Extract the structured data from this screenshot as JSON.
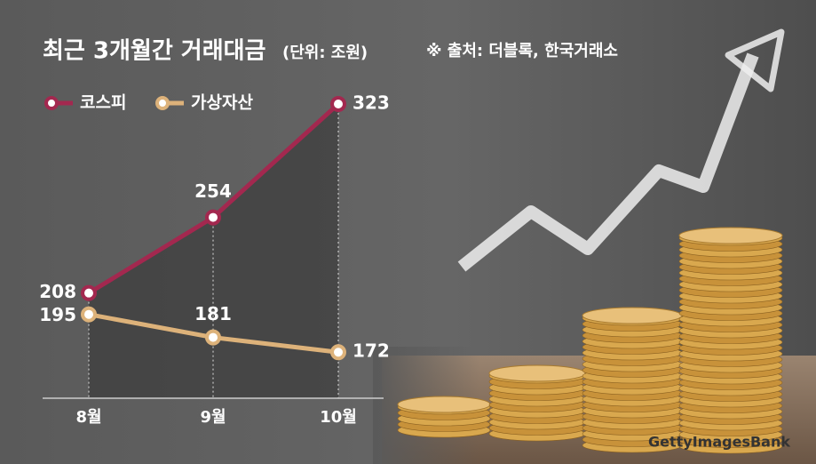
{
  "chart_data": {
    "type": "line",
    "title": "최근 3개월간 거래대금",
    "subtitle": "(단위: 조원)",
    "source": "※ 출처: 더블록, 한국거래소",
    "credit": "GettyImagesBank",
    "categories": [
      "8월",
      "9월",
      "10월"
    ],
    "series": [
      {
        "name": "코스피",
        "color": "#a3284f",
        "values": [
          208,
          254,
          323
        ]
      },
      {
        "name": "가상자산",
        "color": "#ddb27a",
        "values": [
          195,
          181,
          172
        ]
      }
    ],
    "ylim": [
      144,
      323
    ],
    "legend": "top-left"
  }
}
